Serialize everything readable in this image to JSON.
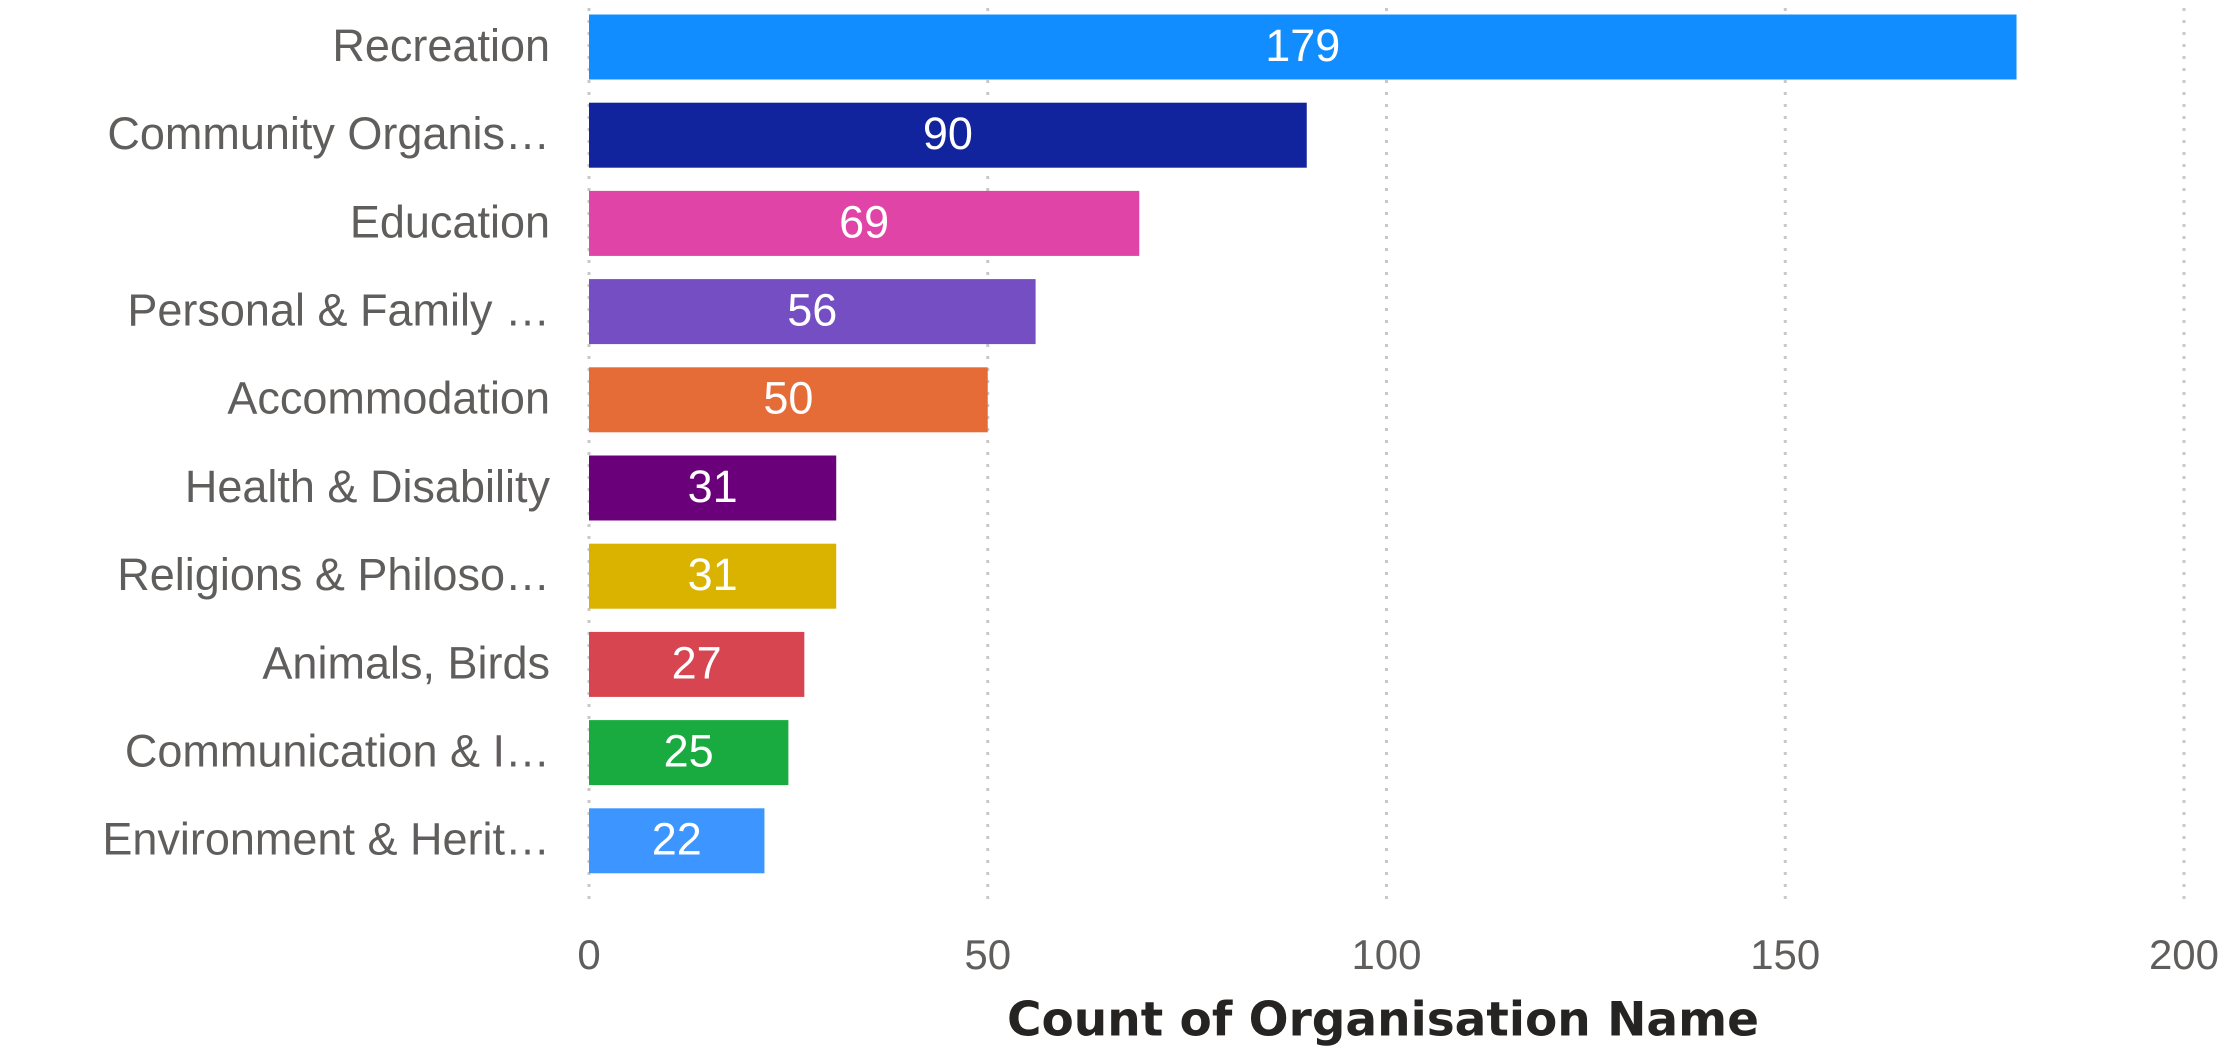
{
  "chart_data": {
    "type": "bar",
    "orientation": "horizontal",
    "x_label": "Count of Organisation Name",
    "categories": [
      "Recreation",
      "Community Organis…",
      "Education",
      "Personal & Family …",
      "Accommodation",
      "Health & Disability",
      "Religions & Philoso…",
      "Animals, Birds",
      "Communication & I…",
      "Environment & Herit…"
    ],
    "values": [
      179,
      90,
      69,
      56,
      50,
      31,
      31,
      27,
      25,
      22
    ],
    "colors": [
      "#118dff",
      "#12239e",
      "#e044a7",
      "#744ec2",
      "#e66c37",
      "#6b007b",
      "#d9b300",
      "#d64550",
      "#1aab40",
      "#3d96ff"
    ],
    "xlim": [
      0,
      200
    ],
    "xticks": [
      0,
      50,
      100,
      150,
      200
    ],
    "grid": true
  }
}
